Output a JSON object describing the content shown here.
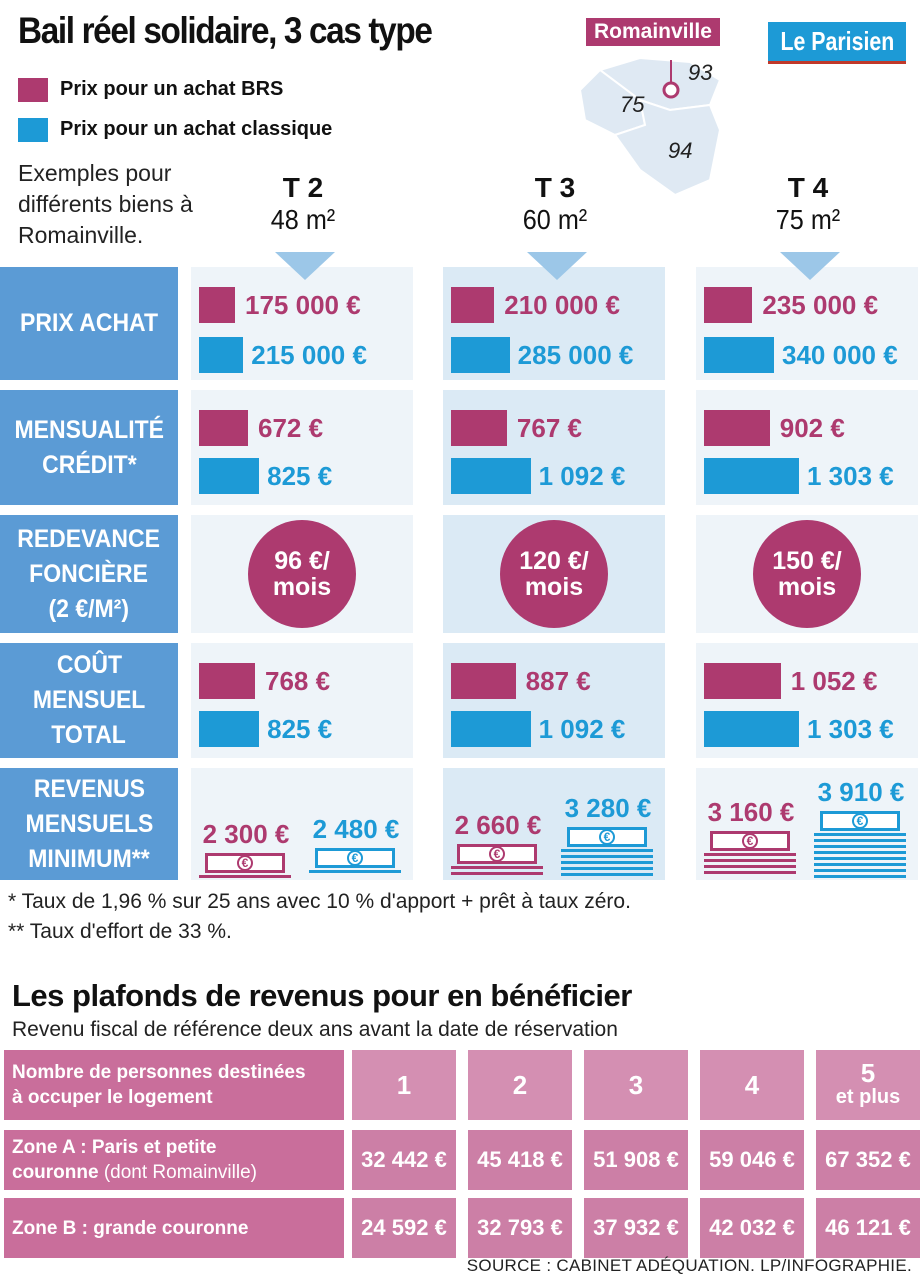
{
  "title": "Bail réel solidaire, 3 cas type",
  "brand": "Le Parisien",
  "legend": [
    {
      "label": "Prix pour un achat BRS",
      "color": "#ad3a6f"
    },
    {
      "label": "Prix pour un achat classique",
      "color": "#1d9ad6"
    }
  ],
  "map": {
    "city": "Romainville",
    "depts": [
      "93",
      "75",
      "94"
    ]
  },
  "intro": "Exemples pour différents biens à Romainville.",
  "columns": [
    {
      "type": "T 2",
      "surface": "48 m²"
    },
    {
      "type": "T 3",
      "surface": "60 m²"
    },
    {
      "type": "T 4",
      "surface": "75 m²"
    }
  ],
  "rows": {
    "prix_achat": "PRIX ACHAT",
    "mensualite": [
      "MENSUALITÉ",
      "CRÉDIT*"
    ],
    "redevance": [
      "REDEVANCE",
      "FONCIÈRE",
      "(2 €/M²)"
    ],
    "cout": [
      "COÛT",
      "MENSUEL",
      "TOTAL"
    ],
    "revenus": [
      "REVENUS",
      "MENSUELS",
      "MINIMUM**"
    ]
  },
  "chart_data": {
    "type": "bar",
    "categories": [
      "T 2 48 m²",
      "T 3 60 m²",
      "T 4 75 m²"
    ],
    "series_labels": [
      "Prix pour un achat BRS",
      "Prix pour un achat classique"
    ],
    "prix_achat": {
      "brs": [
        175000,
        210000,
        235000
      ],
      "classique": [
        215000,
        285000,
        340000
      ],
      "brs_text": [
        "175 000 €",
        "210 000 €",
        "235 000 €"
      ],
      "classique_text": [
        "215 000 €",
        "285 000 €",
        "340 000 €"
      ]
    },
    "mensualite": {
      "brs": [
        672,
        767,
        902
      ],
      "classique": [
        825,
        1092,
        1303
      ],
      "brs_text": [
        "672 €",
        "767 €",
        "902 €"
      ],
      "classique_text": [
        "825 €",
        "1 092 €",
        "1 303 €"
      ]
    },
    "redevance": {
      "values": [
        96,
        120,
        150
      ],
      "text": [
        [
          "96 €/",
          "mois"
        ],
        [
          "120 €/",
          "mois"
        ],
        [
          "150 €/",
          "mois"
        ]
      ]
    },
    "cout": {
      "brs": [
        768,
        887,
        1052
      ],
      "classique": [
        825,
        1092,
        1303
      ],
      "brs_text": [
        "768 €",
        "887 €",
        "1 052 €"
      ],
      "classique_text": [
        "825 €",
        "1 092 €",
        "1 303 €"
      ]
    },
    "revenus": {
      "brs": [
        2300,
        2660,
        3160
      ],
      "classique": [
        2480,
        3280,
        3910
      ],
      "brs_text": [
        "2 300 €",
        "2 660 €",
        "3 160 €"
      ],
      "classique_text": [
        "2 480 €",
        "3 280 €",
        "3 910 €"
      ]
    }
  },
  "footnotes": [
    "* Taux de 1,96 % sur 25 ans avec 10 % d'apport + prêt à taux zéro.",
    "** Taux d'effort de 33 %."
  ],
  "plafonds": {
    "title": "Les plafonds de revenus pour en bénéficier",
    "subtitle": "Revenu fiscal de référence deux ans avant la date de réservation",
    "header_label": [
      "Nombre de personnes destinées",
      "à occuper le logement"
    ],
    "persons": [
      "1",
      "2",
      "3",
      "4"
    ],
    "persons_last": [
      "5",
      "et plus"
    ],
    "zone_a": {
      "label": "Zone A : Paris et petite",
      "label2": "couronne",
      "note": "(dont Romainville)",
      "values": [
        "32 442 €",
        "45 418 €",
        "51 908 €",
        "59 046 €",
        "67 352 €"
      ]
    },
    "zone_b": {
      "label": "Zone B : grande couronne",
      "values": [
        "24 592 €",
        "32 793 €",
        "37 932 €",
        "42 032 €",
        "46 121 €"
      ]
    }
  },
  "source": "SOURCE : CABINET ADÉQUATION.   LP/INFOGRAPHIE."
}
